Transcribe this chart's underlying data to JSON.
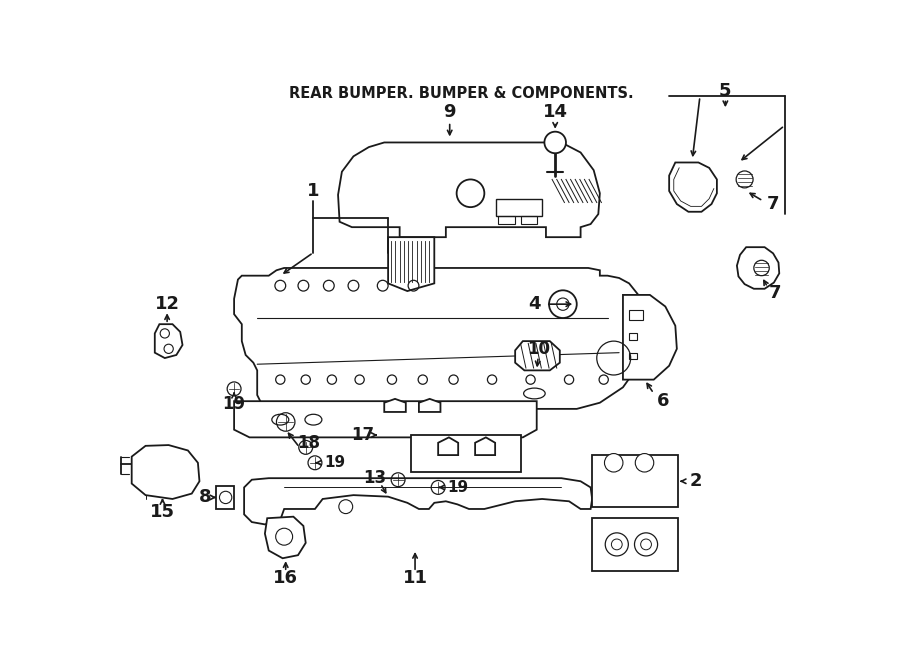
{
  "title": "REAR BUMPER. BUMPER & COMPONENTS.",
  "bg_color": "#ffffff",
  "line_color": "#1a1a1a",
  "fig_width": 9.0,
  "fig_height": 6.61,
  "dpi": 100
}
